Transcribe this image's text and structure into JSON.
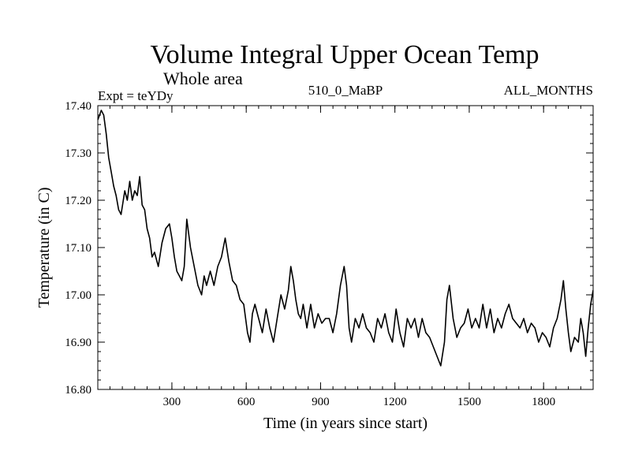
{
  "chart_data": {
    "type": "line",
    "title": "Volume Integral Upper Ocean Temp",
    "subtitle": "Whole area",
    "experiment": "Expt = teYDy",
    "run_label": "510_0_MaBP",
    "months_label": "ALL_MONTHS",
    "xlabel": "Time (in years since start)",
    "ylabel": "Temperature (in C)",
    "xlim": [
      1,
      2000
    ],
    "ylim": [
      16.8,
      17.4
    ],
    "xticks": [
      300,
      600,
      900,
      1200,
      1500,
      1800
    ],
    "xtick_labels": [
      "300",
      "600",
      "900",
      "1200",
      "1500",
      "1800"
    ],
    "yticks": [
      16.8,
      16.9,
      17.0,
      17.1,
      17.2,
      17.3,
      17.4
    ],
    "ytick_labels": [
      "16.80",
      "16.90",
      "17.00",
      "17.10",
      "17.20",
      "17.30",
      "17.40"
    ],
    "x_minor_step": 50,
    "y_minor_step": 0.02,
    "grid": false,
    "series": [
      {
        "name": "Volume Integral Upper Ocean Temp",
        "color": "#000000",
        "x": [
          1,
          15,
          25,
          35,
          45,
          55,
          65,
          75,
          85,
          95,
          110,
          120,
          130,
          140,
          150,
          160,
          170,
          180,
          190,
          200,
          210,
          220,
          230,
          245,
          260,
          275,
          290,
          300,
          310,
          320,
          330,
          340,
          350,
          360,
          375,
          390,
          405,
          420,
          430,
          440,
          455,
          470,
          485,
          500,
          515,
          530,
          545,
          560,
          575,
          590,
          605,
          615,
          625,
          635,
          650,
          665,
          680,
          695,
          710,
          725,
          740,
          755,
          770,
          780,
          790,
          800,
          810,
          820,
          830,
          845,
          860,
          875,
          890,
          905,
          920,
          935,
          950,
          965,
          980,
          995,
          1005,
          1015,
          1025,
          1040,
          1055,
          1070,
          1085,
          1100,
          1115,
          1130,
          1145,
          1160,
          1175,
          1190,
          1205,
          1220,
          1235,
          1250,
          1265,
          1280,
          1295,
          1310,
          1325,
          1340,
          1355,
          1370,
          1385,
          1400,
          1410,
          1420,
          1435,
          1450,
          1465,
          1480,
          1495,
          1510,
          1525,
          1540,
          1555,
          1570,
          1585,
          1600,
          1615,
          1630,
          1645,
          1660,
          1675,
          1690,
          1705,
          1720,
          1735,
          1750,
          1765,
          1780,
          1795,
          1810,
          1825,
          1840,
          1855,
          1870,
          1880,
          1890,
          1900,
          1910,
          1925,
          1940,
          1950,
          1960,
          1970,
          1980,
          1990,
          2000
        ],
        "values": [
          17.37,
          17.39,
          17.38,
          17.34,
          17.29,
          17.26,
          17.23,
          17.21,
          17.18,
          17.17,
          17.22,
          17.2,
          17.24,
          17.2,
          17.22,
          17.21,
          17.25,
          17.19,
          17.18,
          17.14,
          17.12,
          17.08,
          17.09,
          17.06,
          17.11,
          17.14,
          17.15,
          17.12,
          17.08,
          17.05,
          17.04,
          17.03,
          17.06,
          17.16,
          17.1,
          17.06,
          17.02,
          17.0,
          17.04,
          17.02,
          17.05,
          17.02,
          17.06,
          17.08,
          17.12,
          17.07,
          17.03,
          17.02,
          16.99,
          16.98,
          16.92,
          16.9,
          16.96,
          16.98,
          16.95,
          16.92,
          16.97,
          16.93,
          16.9,
          16.95,
          17.0,
          16.97,
          17.01,
          17.06,
          17.03,
          16.99,
          16.96,
          16.95,
          16.98,
          16.93,
          16.98,
          16.93,
          16.96,
          16.94,
          16.95,
          16.95,
          16.92,
          16.96,
          17.02,
          17.06,
          17.02,
          16.93,
          16.9,
          16.95,
          16.93,
          16.96,
          16.93,
          16.92,
          16.9,
          16.95,
          16.93,
          16.96,
          16.92,
          16.9,
          16.97,
          16.92,
          16.89,
          16.95,
          16.93,
          16.95,
          16.91,
          16.95,
          16.92,
          16.91,
          16.89,
          16.87,
          16.85,
          16.9,
          16.99,
          17.02,
          16.95,
          16.91,
          16.93,
          16.94,
          16.97,
          16.93,
          16.95,
          16.93,
          16.98,
          16.93,
          16.97,
          16.92,
          16.95,
          16.93,
          16.96,
          16.98,
          16.95,
          16.94,
          16.93,
          16.95,
          16.92,
          16.94,
          16.93,
          16.9,
          16.92,
          16.91,
          16.89,
          16.93,
          16.95,
          16.99,
          17.03,
          16.97,
          16.92,
          16.88,
          16.91,
          16.9,
          16.95,
          16.92,
          16.87,
          16.93,
          16.98,
          17.01
        ]
      }
    ]
  }
}
